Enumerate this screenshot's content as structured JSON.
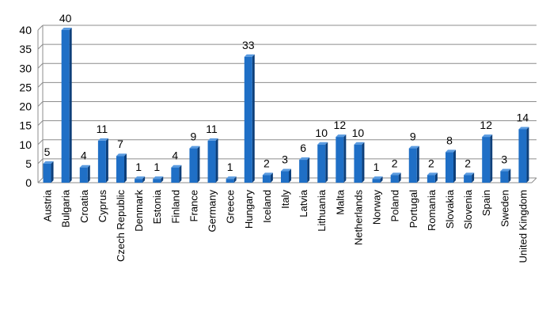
{
  "chart_data": {
    "type": "bar",
    "title": "",
    "xlabel": "",
    "ylabel": "",
    "ylim": [
      0,
      40
    ],
    "yticks": [
      0,
      5,
      10,
      15,
      20,
      25,
      30,
      35,
      40
    ],
    "grid": true,
    "legend": "none",
    "categories": [
      "Austria",
      "Bulgaria",
      "Croatia",
      "Cyprus",
      "Czech Republic",
      "Denmark",
      "Estonia",
      "Finland",
      "France",
      "Germany",
      "Greece",
      "Hungary",
      "Iceland",
      "Italy",
      "Latvia",
      "Lithuania",
      "Malta",
      "Netherlands",
      "Norway",
      "Poland",
      "Portugal",
      "Romania",
      "Slovakia",
      "Slovenia",
      "Spain",
      "Sweden",
      "United Kingdom"
    ],
    "values": [
      5,
      40,
      4,
      11,
      7,
      1,
      1,
      4,
      9,
      11,
      1,
      33,
      2,
      3,
      6,
      10,
      12,
      10,
      1,
      2,
      9,
      2,
      8,
      2,
      12,
      3,
      14
    ],
    "colors": {
      "bar_front": "#1f6fc6",
      "bar_side": "#0d3f7a",
      "bar_top": "#5a9be0",
      "grid": "#8c8c8c"
    }
  }
}
